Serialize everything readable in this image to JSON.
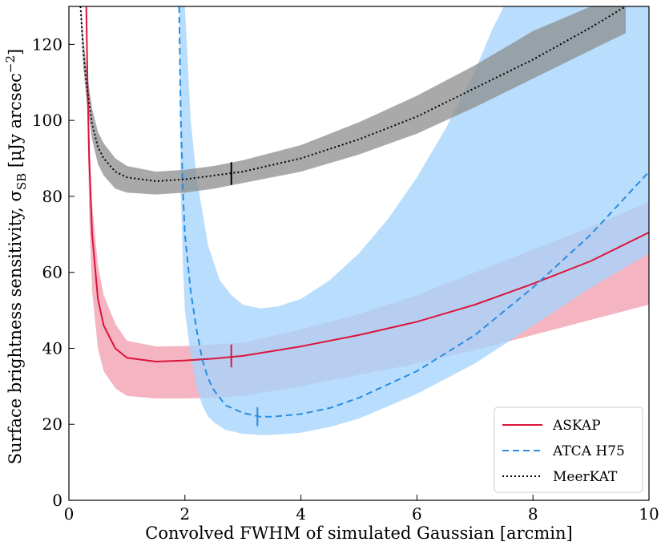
{
  "chart_data": {
    "type": "line",
    "title": "",
    "xlabel": "Convolved FWHM of simulated Gaussian [arcmin]",
    "ylabel": {
      "prefix": "Surface brightness sensitivity, σ",
      "subscript": "SB",
      "unit_prefix": " [μJy arcsec",
      "unit_exponent": "−2",
      "unit_suffix": "]"
    },
    "xlim": [
      0,
      10
    ],
    "ylim": [
      0,
      130
    ],
    "xticks": [
      0,
      2,
      4,
      6,
      8,
      10
    ],
    "yticks": [
      0,
      20,
      40,
      60,
      80,
      100,
      120
    ],
    "grid": false,
    "legend_position": "bottom-right",
    "series": [
      {
        "name": "ASKAP",
        "color": "#dc143c",
        "band_color": "#f08ca0",
        "style": "solid",
        "x": [
          0.3,
          0.32,
          0.35,
          0.4,
          0.5,
          0.6,
          0.8,
          1.0,
          1.5,
          2.0,
          2.5,
          3.0,
          4.0,
          5.0,
          6.0,
          7.0,
          8.0,
          9.0,
          10.0
        ],
        "y": [
          130,
          110,
          90,
          70,
          53,
          46,
          40,
          37.5,
          36.5,
          36.8,
          37.3,
          38,
          40.5,
          43.5,
          47,
          51.5,
          57,
          63,
          70.5
        ],
        "band_upper": [
          130,
          114,
          96,
          78,
          62,
          54,
          46.5,
          42,
          40.5,
          40.6,
          41,
          41.5,
          45,
          49,
          54,
          60,
          66,
          72,
          78.5
        ],
        "band_lower": [
          130,
          100,
          75,
          55,
          40,
          34,
          29.5,
          27.5,
          26.8,
          26.8,
          27,
          27.5,
          30,
          33,
          36,
          39.5,
          43.5,
          47.5,
          51.5
        ],
        "marker": {
          "x": 2.8,
          "y": 38,
          "half_height": 3
        }
      },
      {
        "name": "ATCA H75",
        "color": "#2b8ce0",
        "band_color": "#a8d4fb",
        "style": "dashed",
        "x": [
          1.9,
          1.93,
          1.97,
          2.0,
          2.1,
          2.2,
          2.3,
          2.4,
          2.5,
          2.7,
          3.0,
          3.3,
          3.5,
          4.0,
          4.5,
          5.0,
          6.0,
          7.0,
          8.0,
          9.0,
          10.0
        ],
        "y": [
          130,
          100,
          80,
          70,
          55,
          45,
          37,
          32,
          29,
          25,
          23,
          22,
          22,
          22.7,
          24.3,
          27,
          34,
          43.5,
          56,
          70,
          86.5
        ],
        "band_upper": [
          130,
          130,
          130,
          130,
          130,
          130,
          130,
          130,
          130,
          130,
          130,
          130,
          130,
          130,
          130,
          130,
          130,
          130,
          130,
          130,
          130
        ],
        "band_lower": [
          130,
          80,
          60,
          50,
          38,
          30,
          25,
          22,
          20.5,
          18.5,
          17.5,
          17.2,
          17.2,
          17.8,
          19.3,
          21.5,
          28,
          36,
          46,
          56,
          65
        ],
        "band_upper_curve": {
          "x": [
            2.0,
            2.05,
            2.1,
            2.2,
            2.4,
            2.6,
            2.8,
            3.0,
            3.3,
            3.6,
            4.0,
            4.5,
            5.0,
            5.5,
            6.0,
            6.5,
            7.0,
            7.3,
            7.5
          ],
          "y": [
            130,
            115,
            100,
            85,
            67,
            58,
            54,
            51.5,
            50.5,
            51,
            53,
            58,
            65,
            74,
            85,
            98,
            113,
            124,
            130
          ]
        },
        "marker": {
          "x": 3.25,
          "y": 22,
          "half_height": 2.5
        }
      },
      {
        "name": "MeerKAT",
        "color": "#000000",
        "band_color": "#8c8c8c",
        "style": "dotted",
        "x": [
          0.2,
          0.22,
          0.25,
          0.3,
          0.4,
          0.5,
          0.6,
          0.8,
          1.0,
          1.5,
          2.0,
          2.5,
          3.0,
          4.0,
          5.0,
          6.0,
          7.0,
          8.0,
          9.0,
          9.6
        ],
        "y": [
          130,
          125,
          118,
          110,
          99,
          93,
          90,
          86.5,
          85,
          84,
          84.5,
          85.5,
          86.5,
          90,
          95,
          101,
          108.5,
          116,
          124.5,
          130
        ],
        "band_upper": [
          130,
          128,
          122,
          114,
          103,
          97,
          94,
          90,
          88,
          86.5,
          87,
          88,
          89.5,
          93.5,
          99.5,
          106.5,
          114.5,
          123.5,
          130,
          130
        ],
        "band_lower": [
          130,
          122,
          114,
          106,
          95,
          88.5,
          85.5,
          82,
          81,
          80.5,
          81,
          82,
          83.5,
          86.5,
          91,
          96.5,
          103.5,
          111,
          118.5,
          123
        ],
        "marker": {
          "x": 2.8,
          "y": 86,
          "half_height": 3
        }
      }
    ]
  }
}
